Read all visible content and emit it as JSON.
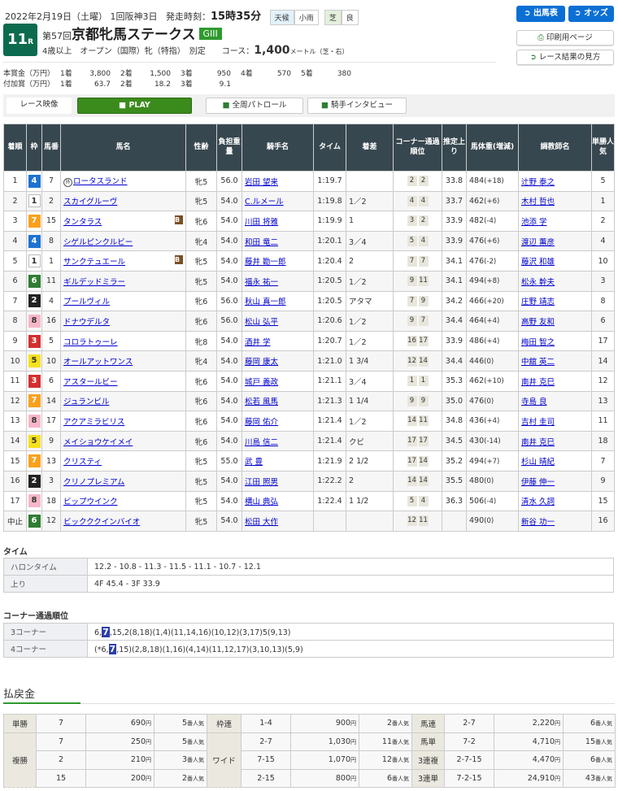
{
  "header": {
    "date": "2022年2月19日（土曜） 1回阪神3日",
    "start_label": "発走時刻：",
    "start_time": "15時35分",
    "weather_label": "天候",
    "weather": "小雨",
    "track_type": "芝",
    "track_cond": "良",
    "race_no": "11",
    "race_suffix": "R",
    "kai": "第57回",
    "race_name": "京都牝馬ステークス",
    "grade": "GIII",
    "conditions": "4歳以上　オープン（国際）牝（特指）　別定　　コース：",
    "distance": "1,400",
    "distance_unit": "メートル（芝・右）"
  },
  "prize": {
    "main_label": "本賞金（万円）",
    "main": [
      [
        "1着",
        "3,800"
      ],
      [
        "2着",
        "1,500"
      ],
      [
        "3着",
        "950"
      ],
      [
        "4着",
        "570"
      ],
      [
        "5着",
        "380"
      ]
    ],
    "extra_label": "付加賞（万円）",
    "extra": [
      [
        "1着",
        "63.7"
      ],
      [
        "2着",
        "18.2"
      ],
      [
        "3着",
        "9.1"
      ]
    ]
  },
  "buttons": {
    "entries": "出馬表",
    "odds": "オッズ",
    "print": "印刷用ページ",
    "guide": "レース結果の見方"
  },
  "video": {
    "label": "レース映像",
    "play": "PLAY",
    "patrol": "全周パトロール",
    "interview": "騎手インタビュー"
  },
  "colors": {
    "waku": {
      "1": "#ffffff",
      "2": "#222222",
      "3": "#d32f2f",
      "4": "#1e73d2",
      "5": "#f5e11c",
      "6": "#2e7d32",
      "7": "#f9a11b",
      "8": "#f7b6c8"
    },
    "header_bg": "#37474f",
    "accent": "#0c6b4e"
  },
  "table": {
    "headers": [
      "着順",
      "枠",
      "馬番",
      "馬名",
      "性齢",
      "負担重量",
      "騎手名",
      "タイム",
      "着差",
      "コーナー通過順位",
      "推定上り",
      "馬体重(増減)",
      "調教師名",
      "単勝人気"
    ],
    "rows": [
      {
        "pos": "1",
        "waku": "4",
        "num": "7",
        "horse": "ロータスランド",
        "mark": "外",
        "blinker": "",
        "sa": "牝5",
        "wt": "56.0",
        "jockey": "岩田 望来",
        "time": "1:19.7",
        "margin": "",
        "corner": [
          "2",
          "2"
        ],
        "last": "33.8",
        "bw": "484",
        "bwd": "(+18)",
        "trainer": "辻野 泰之",
        "pop": "5"
      },
      {
        "pos": "2",
        "waku": "1",
        "num": "2",
        "horse": "スカイグルーヴ",
        "mark": "",
        "blinker": "",
        "sa": "牝5",
        "wt": "54.0",
        "jockey": "C.ルメール",
        "time": "1:19.8",
        "margin": "1／2",
        "corner": [
          "4",
          "4"
        ],
        "last": "33.7",
        "bw": "462",
        "bwd": "(+6)",
        "trainer": "木村 哲也",
        "pop": "1"
      },
      {
        "pos": "3",
        "waku": "7",
        "num": "15",
        "horse": "タンタラス",
        "mark": "",
        "blinker": "B",
        "sa": "牝6",
        "wt": "54.0",
        "jockey": "川田 将雅",
        "time": "1:19.9",
        "margin": "1",
        "corner": [
          "3",
          "2"
        ],
        "last": "33.9",
        "bw": "482",
        "bwd": "(-4)",
        "trainer": "池添 学",
        "pop": "2"
      },
      {
        "pos": "4",
        "waku": "4",
        "num": "8",
        "horse": "シゲルピンクルビー",
        "mark": "",
        "blinker": "",
        "sa": "牝4",
        "wt": "54.0",
        "jockey": "和田 竜二",
        "time": "1:20.1",
        "margin": "3／4",
        "corner": [
          "5",
          "4"
        ],
        "last": "33.9",
        "bw": "476",
        "bwd": "(+6)",
        "trainer": "渡辺 薫彦",
        "pop": "4"
      },
      {
        "pos": "5",
        "waku": "1",
        "num": "1",
        "horse": "サンクテュエール",
        "mark": "",
        "blinker": "B",
        "sa": "牝5",
        "wt": "54.0",
        "jockey": "藤井 勘一郎",
        "time": "1:20.4",
        "margin": "2",
        "corner": [
          "7",
          "7"
        ],
        "last": "34.1",
        "bw": "476",
        "bwd": "(-2)",
        "trainer": "藤沢 和雄",
        "pop": "10"
      },
      {
        "pos": "6",
        "waku": "6",
        "num": "11",
        "horse": "ギルデッドミラー",
        "mark": "",
        "blinker": "",
        "sa": "牝5",
        "wt": "54.0",
        "jockey": "福永 祐一",
        "time": "1:20.5",
        "margin": "1／2",
        "corner": [
          "9",
          "11"
        ],
        "last": "34.1",
        "bw": "494",
        "bwd": "(+8)",
        "trainer": "松永 幹夫",
        "pop": "3"
      },
      {
        "pos": "7",
        "waku": "2",
        "num": "4",
        "horse": "プールヴィル",
        "mark": "",
        "blinker": "",
        "sa": "牝6",
        "wt": "56.0",
        "jockey": "秋山 真一郎",
        "time": "1:20.5",
        "margin": "アタマ",
        "corner": [
          "7",
          "9"
        ],
        "last": "34.2",
        "bw": "466",
        "bwd": "(+20)",
        "trainer": "庄野 靖志",
        "pop": "8"
      },
      {
        "pos": "8",
        "waku": "8",
        "num": "16",
        "horse": "ドナウデルタ",
        "mark": "",
        "blinker": "",
        "sa": "牝6",
        "wt": "56.0",
        "jockey": "松山 弘平",
        "time": "1:20.6",
        "margin": "1／2",
        "corner": [
          "9",
          "7"
        ],
        "last": "34.4",
        "bw": "464",
        "bwd": "(+4)",
        "trainer": "高野 友和",
        "pop": "6"
      },
      {
        "pos": "9",
        "waku": "3",
        "num": "5",
        "horse": "コロラトゥーレ",
        "mark": "",
        "blinker": "",
        "sa": "牝8",
        "wt": "54.0",
        "jockey": "酒井 学",
        "time": "1:20.7",
        "margin": "1／2",
        "corner": [
          "16",
          "17"
        ],
        "last": "33.9",
        "bw": "486",
        "bwd": "(+4)",
        "trainer": "梅田 智之",
        "pop": "17"
      },
      {
        "pos": "10",
        "waku": "5",
        "num": "10",
        "horse": "オールアットワンス",
        "mark": "",
        "blinker": "",
        "sa": "牝4",
        "wt": "54.0",
        "jockey": "藤岡 康太",
        "time": "1:21.0",
        "margin": "1 3/4",
        "corner": [
          "12",
          "14"
        ],
        "last": "34.4",
        "bw": "446",
        "bwd": "(0)",
        "trainer": "中舘 英二",
        "pop": "14"
      },
      {
        "pos": "11",
        "waku": "3",
        "num": "6",
        "horse": "アスタールビー",
        "mark": "",
        "blinker": "",
        "sa": "牝6",
        "wt": "54.0",
        "jockey": "城戸 義政",
        "time": "1:21.1",
        "margin": "3／4",
        "corner": [
          "1",
          "1"
        ],
        "last": "35.3",
        "bw": "462",
        "bwd": "(+10)",
        "trainer": "南井 克巳",
        "pop": "12"
      },
      {
        "pos": "12",
        "waku": "7",
        "num": "14",
        "horse": "ジュランビル",
        "mark": "",
        "blinker": "",
        "sa": "牝6",
        "wt": "54.0",
        "jockey": "松若 風馬",
        "time": "1:21.3",
        "margin": "1 1/4",
        "corner": [
          "9",
          "9"
        ],
        "last": "35.0",
        "bw": "476",
        "bwd": "(0)",
        "trainer": "寺島 良",
        "pop": "13"
      },
      {
        "pos": "13",
        "waku": "8",
        "num": "17",
        "horse": "アクアミラビリス",
        "mark": "",
        "blinker": "",
        "sa": "牝6",
        "wt": "54.0",
        "jockey": "藤岡 佑介",
        "time": "1:21.4",
        "margin": "1／2",
        "corner": [
          "14",
          "11"
        ],
        "last": "34.8",
        "bw": "436",
        "bwd": "(+4)",
        "trainer": "吉村 圭司",
        "pop": "11"
      },
      {
        "pos": "14",
        "waku": "5",
        "num": "9",
        "horse": "メイショウケイメイ",
        "mark": "",
        "blinker": "",
        "sa": "牝6",
        "wt": "54.0",
        "jockey": "川島 信二",
        "time": "1:21.4",
        "margin": "クビ",
        "corner": [
          "17",
          "17"
        ],
        "last": "34.5",
        "bw": "430",
        "bwd": "(-14)",
        "trainer": "南井 克巳",
        "pop": "18"
      },
      {
        "pos": "15",
        "waku": "7",
        "num": "13",
        "horse": "クリスティ",
        "mark": "",
        "blinker": "",
        "sa": "牝5",
        "wt": "55.0",
        "jockey": "武 豊",
        "time": "1:21.9",
        "margin": "2 1/2",
        "corner": [
          "17",
          "14"
        ],
        "last": "35.2",
        "bw": "494",
        "bwd": "(+7)",
        "trainer": "杉山 晴紀",
        "pop": "7"
      },
      {
        "pos": "16",
        "waku": "2",
        "num": "3",
        "horse": "クリノプレミアム",
        "mark": "",
        "blinker": "",
        "sa": "牝5",
        "wt": "54.0",
        "jockey": "江田 照男",
        "time": "1:22.2",
        "margin": "2",
        "corner": [
          "14",
          "14"
        ],
        "last": "35.5",
        "bw": "480",
        "bwd": "(0)",
        "trainer": "伊藤 伸一",
        "pop": "9"
      },
      {
        "pos": "17",
        "waku": "8",
        "num": "18",
        "horse": "ビップウインク",
        "mark": "",
        "blinker": "",
        "sa": "牝5",
        "wt": "54.0",
        "jockey": "横山 典弘",
        "time": "1:22.4",
        "margin": "1 1/2",
        "corner": [
          "5",
          "4"
        ],
        "last": "36.3",
        "bw": "506",
        "bwd": "(-4)",
        "trainer": "清水 久詞",
        "pop": "15"
      },
      {
        "pos": "中止",
        "waku": "6",
        "num": "12",
        "horse": "ビックククインバイオ",
        "mark": "",
        "blinker": "",
        "sa": "牝5",
        "wt": "54.0",
        "jockey": "松田 大作",
        "time": "",
        "margin": "",
        "corner": [
          "12",
          "11"
        ],
        "last": "",
        "bw": "490",
        "bwd": "(0)",
        "trainer": "新谷 功一",
        "pop": "16"
      }
    ]
  },
  "time_section": {
    "title": "タイム",
    "furlong_label": "ハロンタイム",
    "furlong": "12.2 - 10.8 - 11.3 - 11.5 - 11.1 - 10.7 - 12.1",
    "last_label": "上り",
    "last": "4F 45.4 - 3F 33.9"
  },
  "corner_section": {
    "title": "コーナー通過順位",
    "c3_label": "3コーナー",
    "c3_pre": "6,",
    "c3_hl": "7",
    "c3_post": ",15,2(8,18)(1,4)(11,14,16)(10,12)(3,17)5(9,13)",
    "c4_label": "4コーナー",
    "c4_pre": "(*6,",
    "c4_hl": "7",
    "c4_post": ",15)(2,8,18)(1,16)(4,14)(11,12,17)(3,10,13)(5,9)"
  },
  "payout": {
    "title": "払戻金",
    "yen": "円",
    "pop_suffix": "番人気",
    "rows": [
      [
        {
          "k": "単勝",
          "span": 1,
          "n": "7",
          "a": "690",
          "p": "5"
        },
        {
          "k": "枠連",
          "span": 1,
          "n": "1-4",
          "a": "900",
          "p": "2"
        },
        {
          "k": "馬連",
          "n": "2-7",
          "a": "2,220",
          "p": "6"
        }
      ],
      [
        {
          "k": "複勝",
          "span": 3,
          "n": "7",
          "a": "250",
          "p": "5"
        },
        {
          "k": "ワイド",
          "span": 3,
          "n": "2-7",
          "a": "1,030",
          "p": "11"
        },
        {
          "k": "馬単",
          "n": "7-2",
          "a": "4,710",
          "p": "15"
        }
      ],
      [
        {
          "n": "2",
          "a": "210",
          "p": "3"
        },
        {
          "n": "7-15",
          "a": "1,070",
          "p": "12"
        },
        {
          "k": "3連複",
          "n": "2-7-15",
          "a": "4,470",
          "p": "6"
        }
      ],
      [
        {
          "n": "15",
          "a": "200",
          "p": "2"
        },
        {
          "n": "2-15",
          "a": "800",
          "p": "6"
        },
        {
          "k": "3連単",
          "n": "7-2-15",
          "a": "24,910",
          "p": "43"
        }
      ]
    ]
  }
}
